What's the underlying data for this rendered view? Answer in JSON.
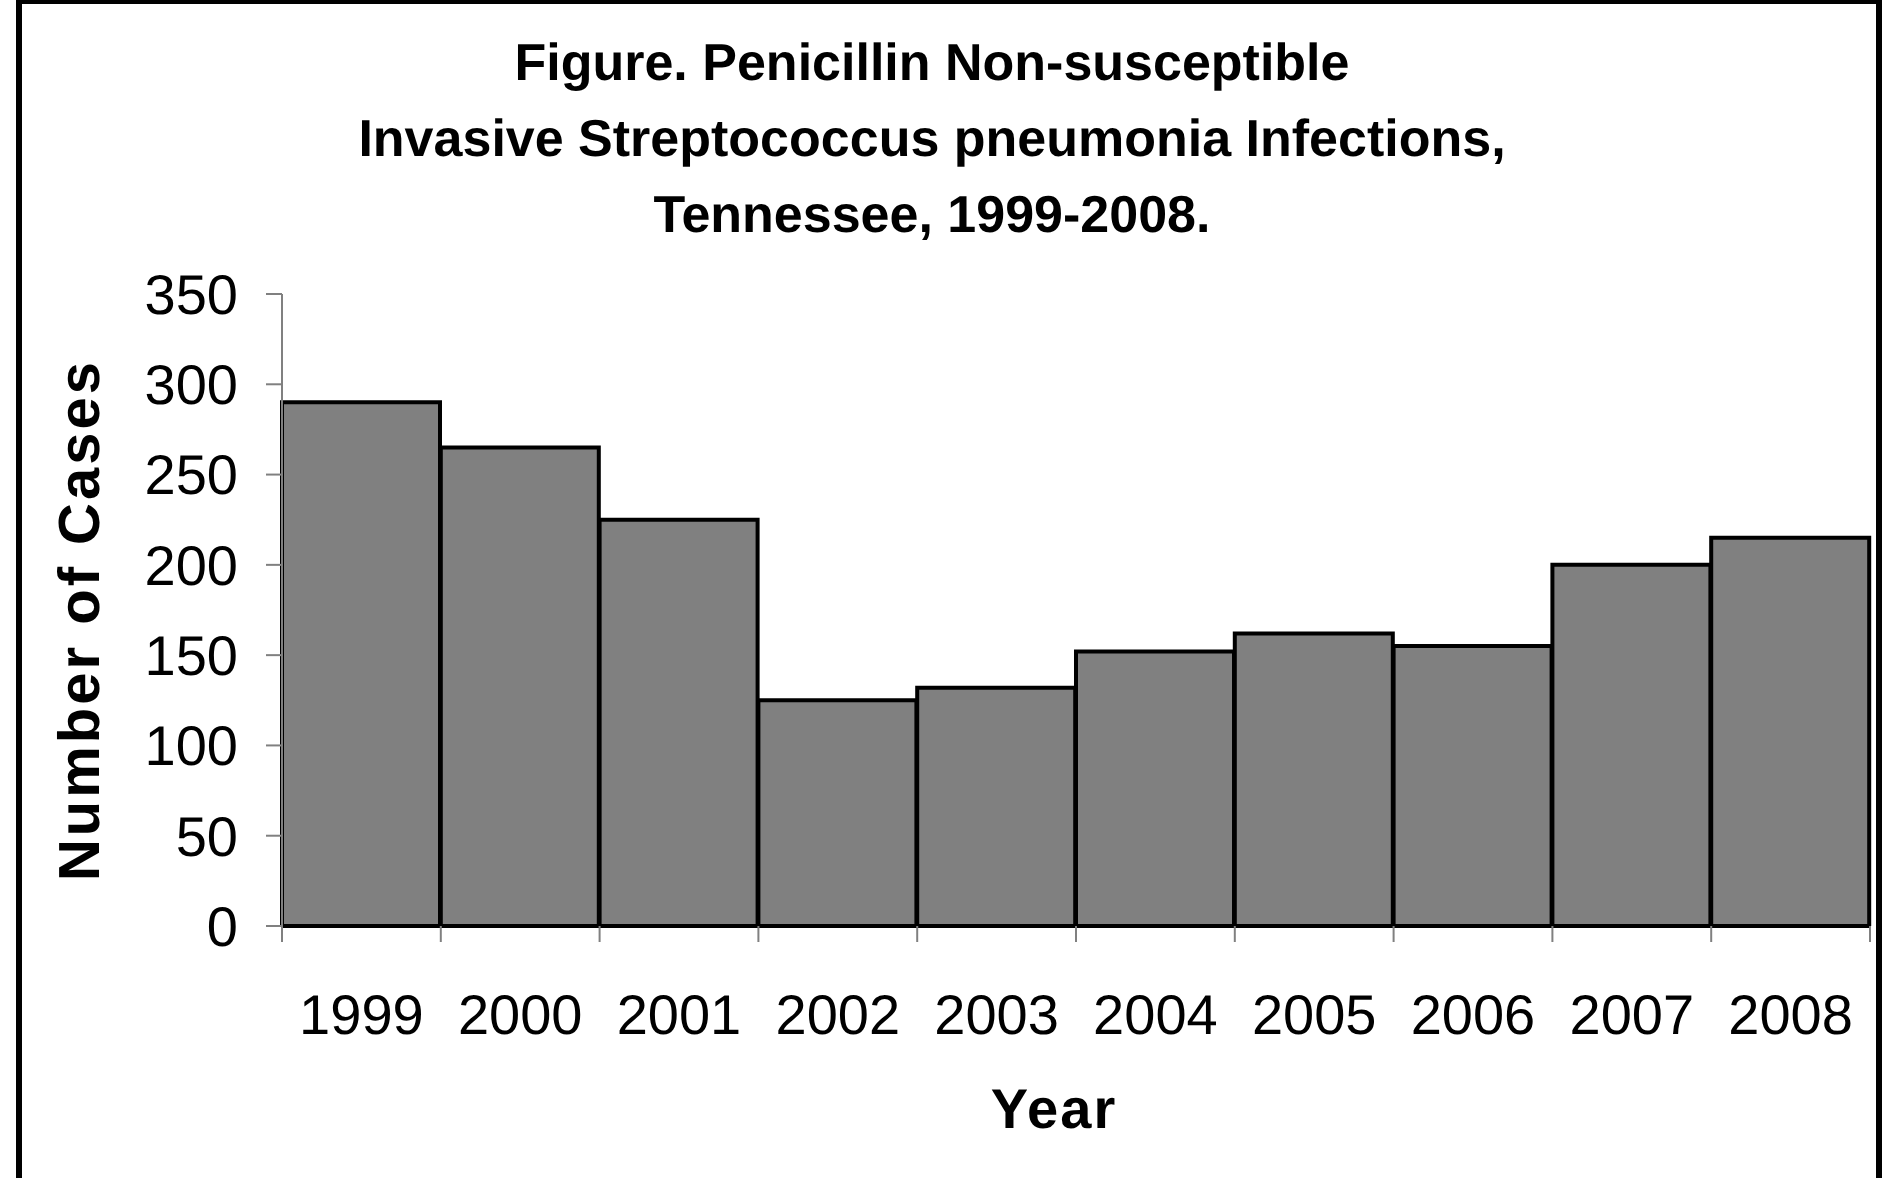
{
  "chart_data": {
    "type": "bar",
    "title": "Figure. Penicillin Non-susceptible\nInvasive Streptococcus pneumonia Infections,\nTennessee, 1999-2008.",
    "xlabel": "Year",
    "ylabel": "Number of Cases",
    "categories": [
      "1999",
      "2000",
      "2001",
      "2002",
      "2003",
      "2004",
      "2005",
      "2006",
      "2007",
      "2008"
    ],
    "values": [
      290,
      265,
      225,
      125,
      132,
      152,
      162,
      155,
      200,
      215
    ],
    "color": "#808080",
    "ylim": [
      0,
      350
    ],
    "yticks": [
      0,
      50,
      100,
      150,
      200,
      250,
      300,
      350
    ]
  }
}
